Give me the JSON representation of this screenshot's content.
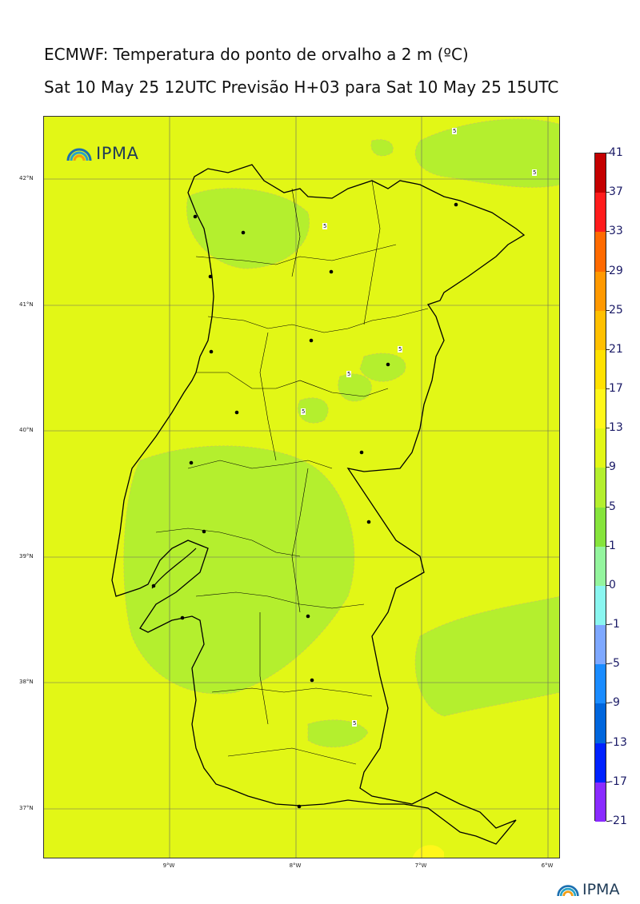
{
  "header": {
    "title": "ECMWF: Temperatura do ponto de orvalho a 2 m (ºC)",
    "subtitle": "Sat 10 May 25 12UTC Previsão H+03 para Sat 10 May 25 15UTC"
  },
  "logo": {
    "text": "IPMA",
    "icon": "ipma-rainbow-icon"
  },
  "map": {
    "region": "Portugal mainland",
    "lat_labels": [
      "42°N",
      "41°N",
      "40°N",
      "39°N",
      "38°N",
      "37°N"
    ],
    "lon_labels": [
      "9°W",
      "8°W",
      "7°W",
      "6°W"
    ],
    "contour_label": "5",
    "colors": {
      "field_9_13": "#e2f716",
      "field_5_9": "#b4ef2e",
      "land_border": "#000000",
      "grid": "#555555"
    }
  },
  "colorbar": {
    "labels": [
      "41",
      "37",
      "33",
      "29",
      "25",
      "21",
      "17",
      "13",
      "9",
      "5",
      "1",
      "0",
      "-1",
      "-5",
      "-9",
      "-13",
      "-17",
      "-21"
    ],
    "colors": [
      "#c40000",
      "#ff1c1c",
      "#ff6a00",
      "#ff9900",
      "#ffc000",
      "#ffe100",
      "#fff71a",
      "#e2f716",
      "#b4ef2e",
      "#86e43c",
      "#94f59e",
      "#8af6f0",
      "#7ea8ff",
      "#1a8cff",
      "#0066dd",
      "#0022ff",
      "#8a2bff"
    ]
  }
}
